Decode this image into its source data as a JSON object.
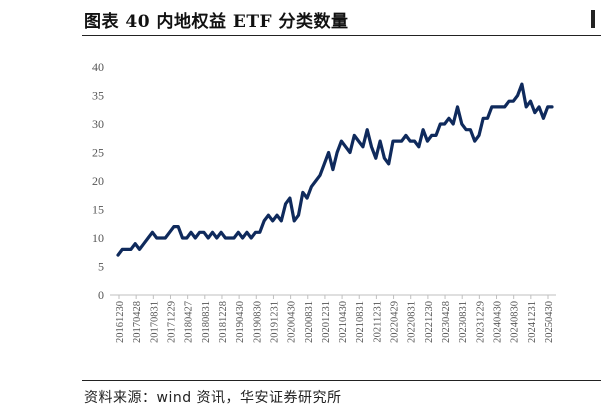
{
  "figure": {
    "title": "图表 40  内地权益 ETF 分类数量",
    "source_label": "资料来源：",
    "source_en": "wind",
    "source_rest": " 资讯，华安证券研究所"
  },
  "chart_data": {
    "type": "line",
    "title": "",
    "xlabel": "",
    "ylabel": "",
    "ylim": [
      0,
      40
    ],
    "yticks": [
      0,
      5,
      10,
      15,
      20,
      25,
      30,
      35,
      40
    ],
    "grid": false,
    "legend": "none",
    "line_color": "#0f2a5c",
    "x_tick_labels": [
      "20161230",
      "20170428",
      "20170831",
      "20171229",
      "20180427",
      "20180831",
      "20181228",
      "20190430",
      "20190830",
      "20191231",
      "20200430",
      "20200831",
      "20201231",
      "20210430",
      "20210831",
      "20211231",
      "20220429",
      "20220831",
      "20221230",
      "20230428",
      "20230831",
      "20231229",
      "20240430",
      "20240830",
      "20241231",
      "20250430"
    ],
    "series": [
      {
        "values": [
          7,
          8,
          8,
          8,
          9,
          8,
          9,
          10,
          11,
          10,
          10,
          10,
          11,
          12,
          12,
          10,
          10,
          11,
          10,
          11,
          11,
          10,
          11,
          10,
          11,
          10,
          10,
          10,
          11,
          10,
          11,
          10,
          11,
          11,
          13,
          14,
          13,
          14,
          13,
          16,
          17,
          13,
          14,
          18,
          17,
          19,
          20,
          21,
          23,
          25,
          22,
          25,
          27,
          26,
          25,
          28,
          27,
          26,
          29,
          26,
          24,
          27,
          24,
          23,
          27,
          27,
          27,
          28,
          27,
          27,
          26,
          29,
          27,
          28,
          28,
          30,
          30,
          31,
          30,
          33,
          30,
          29,
          29,
          27,
          28,
          31,
          31,
          33,
          33,
          33,
          33,
          34,
          34,
          35,
          37,
          33,
          34,
          32,
          33,
          31,
          33,
          33
        ]
      }
    ]
  }
}
